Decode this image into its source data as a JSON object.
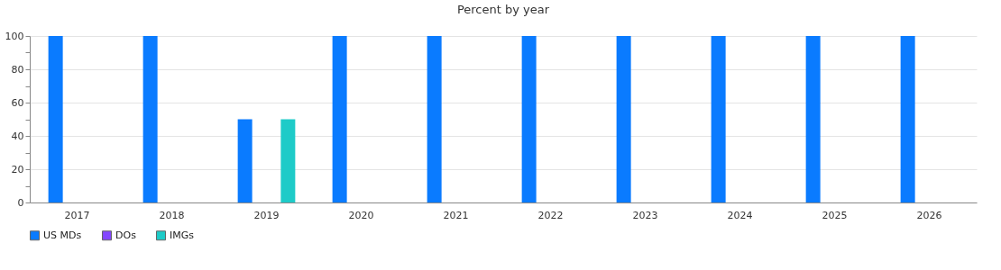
{
  "chart_data": {
    "type": "bar",
    "title": "Percent by year",
    "categories": [
      "2017",
      "2018",
      "2019",
      "2020",
      "2021",
      "2022",
      "2023",
      "2024",
      "2025",
      "2026"
    ],
    "series": [
      {
        "name": "US MDs",
        "color": "#0a7bff",
        "values": [
          100,
          100,
          50,
          100,
          100,
          100,
          100,
          100,
          100,
          100
        ]
      },
      {
        "name": "DOs",
        "color": "#8447ff",
        "values": [
          0,
          0,
          0,
          0,
          0,
          0,
          0,
          0,
          0,
          0
        ]
      },
      {
        "name": "IMGs",
        "color": "#1ecbc8",
        "values": [
          0,
          0,
          50,
          0,
          0,
          0,
          0,
          0,
          0,
          0
        ]
      }
    ],
    "ylim": [
      0,
      100
    ],
    "yticks": [
      0,
      {
        "value": 10,
        "label": null
      },
      20,
      {
        "value": 30,
        "label": null
      },
      40,
      {
        "value": 50,
        "label": null
      },
      60,
      {
        "value": 70,
        "label": null
      },
      80,
      {
        "value": 90,
        "label": null
      },
      100
    ],
    "grid": "y",
    "legend": "bottom"
  }
}
